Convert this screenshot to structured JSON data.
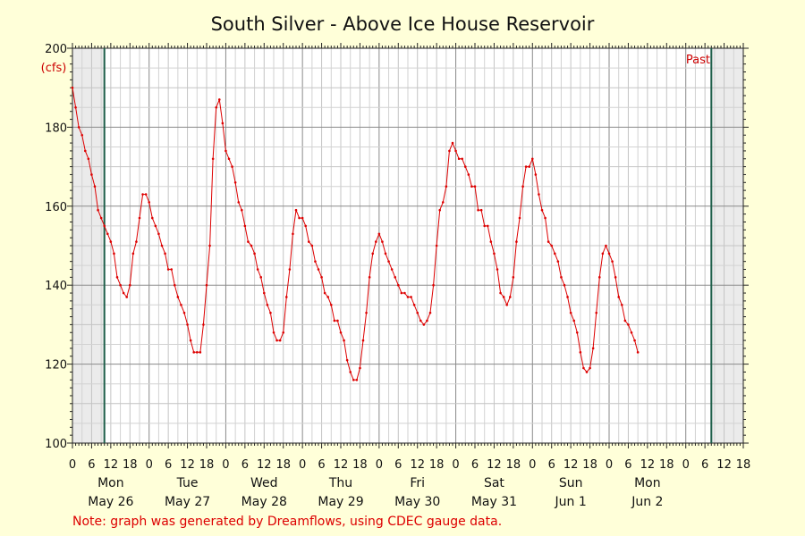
{
  "chart_data": {
    "type": "line",
    "title": "South Silver - Above Ice House Reservoir",
    "unit_label": "(cfs)",
    "ylim": [
      100,
      200
    ],
    "y_ticks": [
      100,
      120,
      140,
      160,
      180,
      200
    ],
    "x_range_hours": [
      0,
      210
    ],
    "hour_tick_labels": [
      "0",
      "6",
      "12",
      "18",
      "0",
      "6",
      "12",
      "18",
      "0",
      "6",
      "12",
      "18",
      "0",
      "6",
      "12",
      "18",
      "0",
      "6",
      "12",
      "18",
      "0",
      "6",
      "12",
      "18",
      "0",
      "6",
      "12",
      "18",
      "0",
      "6",
      "12",
      "18",
      "0",
      "6",
      "12",
      "18"
    ],
    "day_names": [
      "Mon",
      "Tue",
      "Wed",
      "Thu",
      "Fri",
      "Sat",
      "Sun",
      "Mon"
    ],
    "dates": [
      "May 26",
      "May 27",
      "May 28",
      "May 29",
      "May 30",
      "May 31",
      "Jun 1",
      "Jun 2"
    ],
    "shaded_regions_hours": [
      [
        0,
        10
      ],
      [
        200,
        210
      ]
    ],
    "markers_hours": [
      10,
      200
    ],
    "past_label": "Past",
    "grid": true,
    "note": "Note: graph was generated by Dreamflows, using CDEC gauge data.",
    "series": [
      {
        "color": "#dd0000",
        "points": [
          [
            0,
            190
          ],
          [
            1,
            185
          ],
          [
            2,
            180
          ],
          [
            3,
            178
          ],
          [
            4,
            174
          ],
          [
            5,
            172
          ],
          [
            6,
            168
          ],
          [
            7,
            165
          ],
          [
            8,
            159
          ],
          [
            9,
            157
          ],
          [
            10,
            155
          ],
          [
            11,
            153
          ],
          [
            12,
            151
          ],
          [
            13,
            148
          ],
          [
            14,
            142
          ],
          [
            15,
            140
          ],
          [
            16,
            138
          ],
          [
            17,
            137
          ],
          [
            18,
            140
          ],
          [
            19,
            148
          ],
          [
            20,
            151
          ],
          [
            21,
            157
          ],
          [
            22,
            163
          ],
          [
            23,
            163
          ],
          [
            24,
            161
          ],
          [
            25,
            157
          ],
          [
            26,
            155
          ],
          [
            27,
            153
          ],
          [
            28,
            150
          ],
          [
            29,
            148
          ],
          [
            30,
            144
          ],
          [
            31,
            144
          ],
          [
            32,
            140
          ],
          [
            33,
            137
          ],
          [
            34,
            135
          ],
          [
            35,
            133
          ],
          [
            36,
            130
          ],
          [
            37,
            126
          ],
          [
            38,
            123
          ],
          [
            39,
            123
          ],
          [
            40,
            123
          ],
          [
            41,
            130
          ],
          [
            42,
            140
          ],
          [
            43,
            150
          ],
          [
            44,
            172
          ],
          [
            45,
            185
          ],
          [
            46,
            187
          ],
          [
            47,
            181
          ],
          [
            48,
            174
          ],
          [
            49,
            172
          ],
          [
            50,
            170
          ],
          [
            51,
            166
          ],
          [
            52,
            161
          ],
          [
            53,
            159
          ],
          [
            54,
            155
          ],
          [
            55,
            151
          ],
          [
            56,
            150
          ],
          [
            57,
            148
          ],
          [
            58,
            144
          ],
          [
            59,
            142
          ],
          [
            60,
            138
          ],
          [
            61,
            135
          ],
          [
            62,
            133
          ],
          [
            63,
            128
          ],
          [
            64,
            126
          ],
          [
            65,
            126
          ],
          [
            66,
            128
          ],
          [
            67,
            137
          ],
          [
            68,
            144
          ],
          [
            69,
            153
          ],
          [
            70,
            159
          ],
          [
            71,
            157
          ],
          [
            72,
            157
          ],
          [
            73,
            155
          ],
          [
            74,
            151
          ],
          [
            75,
            150
          ],
          [
            76,
            146
          ],
          [
            77,
            144
          ],
          [
            78,
            142
          ],
          [
            79,
            138
          ],
          [
            80,
            137
          ],
          [
            81,
            135
          ],
          [
            82,
            131
          ],
          [
            83,
            131
          ],
          [
            84,
            128
          ],
          [
            85,
            126
          ],
          [
            86,
            121
          ],
          [
            87,
            118
          ],
          [
            88,
            116
          ],
          [
            89,
            116
          ],
          [
            90,
            119
          ],
          [
            91,
            126
          ],
          [
            92,
            133
          ],
          [
            93,
            142
          ],
          [
            94,
            148
          ],
          [
            95,
            151
          ],
          [
            96,
            153
          ],
          [
            97,
            151
          ],
          [
            98,
            148
          ],
          [
            99,
            146
          ],
          [
            100,
            144
          ],
          [
            101,
            142
          ],
          [
            102,
            140
          ],
          [
            103,
            138
          ],
          [
            104,
            138
          ],
          [
            105,
            137
          ],
          [
            106,
            137
          ],
          [
            107,
            135
          ],
          [
            108,
            133
          ],
          [
            109,
            131
          ],
          [
            110,
            130
          ],
          [
            111,
            131
          ],
          [
            112,
            133
          ],
          [
            113,
            140
          ],
          [
            114,
            150
          ],
          [
            115,
            159
          ],
          [
            116,
            161
          ],
          [
            117,
            165
          ],
          [
            118,
            174
          ],
          [
            119,
            176
          ],
          [
            120,
            174
          ],
          [
            121,
            172
          ],
          [
            122,
            172
          ],
          [
            123,
            170
          ],
          [
            124,
            168
          ],
          [
            125,
            165
          ],
          [
            126,
            165
          ],
          [
            127,
            159
          ],
          [
            128,
            159
          ],
          [
            129,
            155
          ],
          [
            130,
            155
          ],
          [
            131,
            151
          ],
          [
            132,
            148
          ],
          [
            133,
            144
          ],
          [
            134,
            138
          ],
          [
            135,
            137
          ],
          [
            136,
            135
          ],
          [
            137,
            137
          ],
          [
            138,
            142
          ],
          [
            139,
            151
          ],
          [
            140,
            157
          ],
          [
            141,
            165
          ],
          [
            142,
            170
          ],
          [
            143,
            170
          ],
          [
            144,
            172
          ],
          [
            145,
            168
          ],
          [
            146,
            163
          ],
          [
            147,
            159
          ],
          [
            148,
            157
          ],
          [
            149,
            151
          ],
          [
            150,
            150
          ],
          [
            151,
            148
          ],
          [
            152,
            146
          ],
          [
            153,
            142
          ],
          [
            154,
            140
          ],
          [
            155,
            137
          ],
          [
            156,
            133
          ],
          [
            157,
            131
          ],
          [
            158,
            128
          ],
          [
            159,
            123
          ],
          [
            160,
            119
          ],
          [
            161,
            118
          ],
          [
            162,
            119
          ],
          [
            163,
            124
          ],
          [
            164,
            133
          ],
          [
            165,
            142
          ],
          [
            166,
            148
          ],
          [
            167,
            150
          ],
          [
            168,
            148
          ],
          [
            169,
            146
          ],
          [
            170,
            142
          ],
          [
            171,
            137
          ],
          [
            172,
            135
          ],
          [
            173,
            131
          ],
          [
            174,
            130
          ],
          [
            175,
            128
          ],
          [
            176,
            126
          ],
          [
            177,
            123
          ]
        ]
      }
    ]
  }
}
